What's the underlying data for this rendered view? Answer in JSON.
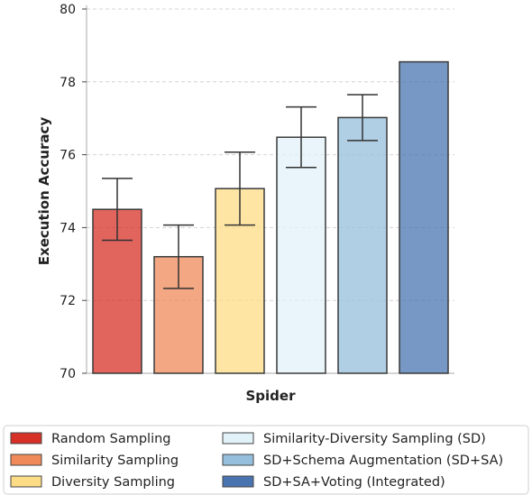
{
  "chart_data": {
    "type": "bar",
    "title": "",
    "xlabel": "Spider",
    "ylabel": "Execution Accuracy",
    "ylim": [
      70,
      80
    ],
    "yticks": [
      70,
      72,
      74,
      76,
      78,
      80
    ],
    "grid": true,
    "legend_position": "bottom",
    "series": [
      {
        "name": "Random Sampling",
        "value": 74.5,
        "error": 0.85,
        "color": "#d73027"
      },
      {
        "name": "Similarity Sampling",
        "value": 73.2,
        "error": 0.87,
        "color": "#f08a5a"
      },
      {
        "name": "Diversity Sampling",
        "value": 75.07,
        "error": 1.0,
        "color": "#fddc86"
      },
      {
        "name": "Similarity-Diversity Sampling (SD)",
        "value": 76.48,
        "error": 0.83,
        "color": "#e1f2f8"
      },
      {
        "name": "SD+Schema Augmentation (SD+SA)",
        "value": 77.02,
        "error": 0.63,
        "color": "#95bfdc"
      },
      {
        "name": "SD+SA+Voting (Integrated)",
        "value": 78.55,
        "error": null,
        "color": "#4a74b0"
      }
    ]
  }
}
